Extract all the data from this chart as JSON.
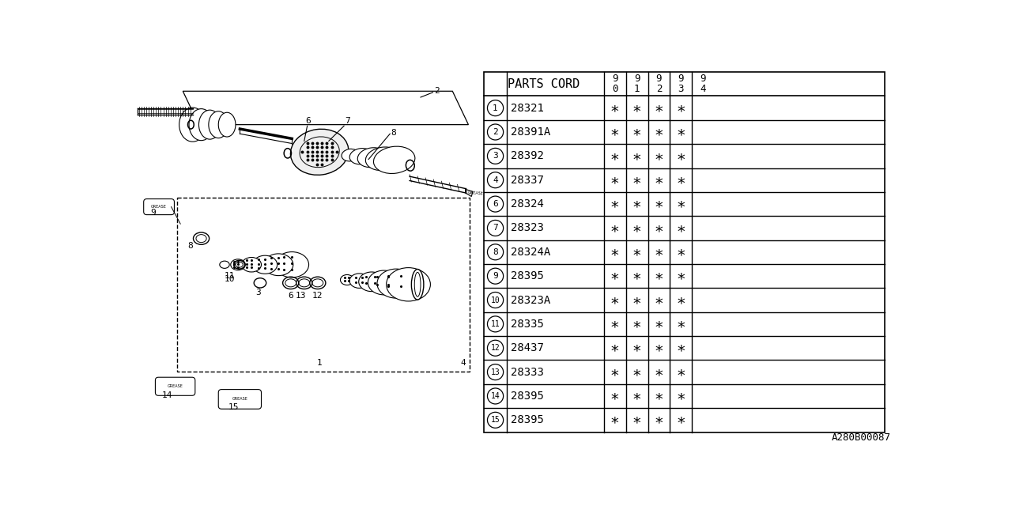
{
  "parts_code_header": "PARTS CORD",
  "year_cols": [
    "9\n0",
    "9\n1",
    "9\n2",
    "9\n3",
    "9\n4"
  ],
  "rows": [
    {
      "num": "1",
      "code": "28321",
      "marks": [
        true,
        true,
        true,
        true,
        false
      ]
    },
    {
      "num": "2",
      "code": "28391A",
      "marks": [
        true,
        true,
        true,
        true,
        false
      ]
    },
    {
      "num": "3",
      "code": "28392",
      "marks": [
        true,
        true,
        true,
        true,
        false
      ]
    },
    {
      "num": "4",
      "code": "28337",
      "marks": [
        true,
        true,
        true,
        true,
        false
      ]
    },
    {
      "num": "6",
      "code": "28324",
      "marks": [
        true,
        true,
        true,
        true,
        false
      ]
    },
    {
      "num": "7",
      "code": "28323",
      "marks": [
        true,
        true,
        true,
        true,
        false
      ]
    },
    {
      "num": "8",
      "code": "28324A",
      "marks": [
        true,
        true,
        true,
        true,
        false
      ]
    },
    {
      "num": "9",
      "code": "28395",
      "marks": [
        true,
        true,
        true,
        true,
        false
      ]
    },
    {
      "num": "10",
      "code": "28323A",
      "marks": [
        true,
        true,
        true,
        true,
        false
      ]
    },
    {
      "num": "11",
      "code": "28335",
      "marks": [
        true,
        true,
        true,
        true,
        false
      ]
    },
    {
      "num": "12",
      "code": "28437",
      "marks": [
        true,
        true,
        true,
        true,
        false
      ]
    },
    {
      "num": "13",
      "code": "28333",
      "marks": [
        true,
        true,
        true,
        true,
        false
      ]
    },
    {
      "num": "14",
      "code": "28395",
      "marks": [
        true,
        true,
        true,
        true,
        false
      ]
    },
    {
      "num": "15",
      "code": "28395",
      "marks": [
        true,
        true,
        true,
        true,
        false
      ]
    }
  ],
  "diagram_ref": "A280B00087",
  "bg_color": "#ffffff",
  "line_color": "#000000"
}
